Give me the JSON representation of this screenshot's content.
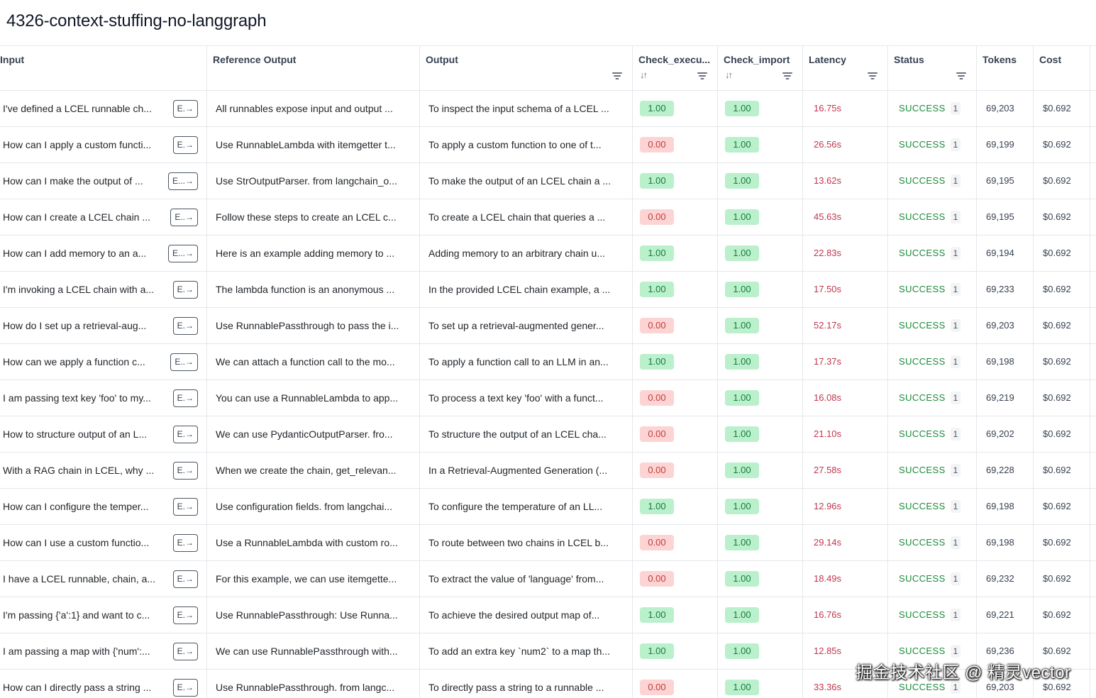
{
  "page_title": "4326-context-stuffing-no-langgraph",
  "columns": {
    "input": "Input",
    "reference": "Reference Output",
    "output": "Output",
    "check_exec": "Check_execu...",
    "check_import": "Check_import",
    "latency": "Latency",
    "status": "Status",
    "tokens": "Tokens",
    "cost": "Cost"
  },
  "rows": [
    {
      "input": "I've defined a LCEL runnable ch...",
      "expand": "E.→",
      "reference": "All runnables expose input and output ...",
      "output": "To inspect the input schema of a LCEL ...",
      "check_exec": "1.00",
      "check_import": "1.00",
      "latency": "16.75s",
      "status": "SUCCESS",
      "count": "1",
      "tokens": "69,203",
      "cost": "$0.692"
    },
    {
      "input": "How can I apply a custom functi...",
      "expand": "E.→",
      "reference": "Use RunnableLambda with itemgetter t...",
      "output": "To apply a custom function to one of t...",
      "check_exec": "0.00",
      "check_import": "1.00",
      "latency": "26.56s",
      "status": "SUCCESS",
      "count": "1",
      "tokens": "69,199",
      "cost": "$0.692"
    },
    {
      "input": "How can I make the output of ...",
      "expand": "E...→",
      "reference": "Use StrOutputParser. from langchain_o...",
      "output": "To make the output of an LCEL chain a ...",
      "check_exec": "1.00",
      "check_import": "1.00",
      "latency": "13.62s",
      "status": "SUCCESS",
      "count": "1",
      "tokens": "69,195",
      "cost": "$0.692"
    },
    {
      "input": "How can I create a LCEL chain ...",
      "expand": "E..→",
      "reference": "Follow these steps to create an LCEL c...",
      "output": "To create a LCEL chain that queries a ...",
      "check_exec": "0.00",
      "check_import": "1.00",
      "latency": "45.63s",
      "status": "SUCCESS",
      "count": "1",
      "tokens": "69,195",
      "cost": "$0.692"
    },
    {
      "input": "How can I add memory to an a...",
      "expand": "E...→",
      "reference": "Here is an example adding memory to ...",
      "output": "Adding memory to an arbitrary chain u...",
      "check_exec": "1.00",
      "check_import": "1.00",
      "latency": "22.83s",
      "status": "SUCCESS",
      "count": "1",
      "tokens": "69,194",
      "cost": "$0.692"
    },
    {
      "input": "I'm invoking a LCEL chain with a...",
      "expand": "E.→",
      "reference": "The lambda function is an anonymous ...",
      "output": "In the provided LCEL chain example, a ...",
      "check_exec": "1.00",
      "check_import": "1.00",
      "latency": "17.50s",
      "status": "SUCCESS",
      "count": "1",
      "tokens": "69,233",
      "cost": "$0.692"
    },
    {
      "input": "How do I set up a retrieval-aug...",
      "expand": "E.→",
      "reference": "Use RunnablePassthrough to pass the i...",
      "output": "To set up a retrieval-augmented gener...",
      "check_exec": "0.00",
      "check_import": "1.00",
      "latency": "52.17s",
      "status": "SUCCESS",
      "count": "1",
      "tokens": "69,203",
      "cost": "$0.692"
    },
    {
      "input": "How can we apply a function c...",
      "expand": "E..→",
      "reference": "We can attach a function call to the mo...",
      "output": "To apply a function call to an LLM in an...",
      "check_exec": "1.00",
      "check_import": "1.00",
      "latency": "17.37s",
      "status": "SUCCESS",
      "count": "1",
      "tokens": "69,198",
      "cost": "$0.692"
    },
    {
      "input": "I am passing text key 'foo' to my...",
      "expand": "E.→",
      "reference": "You can use a RunnableLambda to app...",
      "output": "To process a text key 'foo' with a funct...",
      "check_exec": "0.00",
      "check_import": "1.00",
      "latency": "16.08s",
      "status": "SUCCESS",
      "count": "1",
      "tokens": "69,219",
      "cost": "$0.692"
    },
    {
      "input": "How to structure output of an L...",
      "expand": "E.→",
      "reference": "We can use PydanticOutputParser. fro...",
      "output": "To structure the output of an LCEL cha...",
      "check_exec": "0.00",
      "check_import": "1.00",
      "latency": "21.10s",
      "status": "SUCCESS",
      "count": "1",
      "tokens": "69,202",
      "cost": "$0.692"
    },
    {
      "input": "With a RAG chain in LCEL, why ...",
      "expand": "E.→",
      "reference": "When we create the chain, get_relevan...",
      "output": "In a Retrieval-Augmented Generation (...",
      "check_exec": "0.00",
      "check_import": "1.00",
      "latency": "27.58s",
      "status": "SUCCESS",
      "count": "1",
      "tokens": "69,228",
      "cost": "$0.692"
    },
    {
      "input": "How can I configure the temper...",
      "expand": "E.→",
      "reference": "Use configuration fields. from langchai...",
      "output": "To configure the temperature of an LL...",
      "check_exec": "1.00",
      "check_import": "1.00",
      "latency": "12.96s",
      "status": "SUCCESS",
      "count": "1",
      "tokens": "69,198",
      "cost": "$0.692"
    },
    {
      "input": "How can I use a custom functio...",
      "expand": "E.→",
      "reference": "Use a RunnableLambda with custom ro...",
      "output": "To route between two chains in LCEL b...",
      "check_exec": "0.00",
      "check_import": "1.00",
      "latency": "29.14s",
      "status": "SUCCESS",
      "count": "1",
      "tokens": "69,198",
      "cost": "$0.692"
    },
    {
      "input": "I have a LCEL runnable, chain, a...",
      "expand": "E.→",
      "reference": "For this example, we can use itemgette...",
      "output": "To extract the value of 'language' from...",
      "check_exec": "0.00",
      "check_import": "1.00",
      "latency": "18.49s",
      "status": "SUCCESS",
      "count": "1",
      "tokens": "69,232",
      "cost": "$0.692"
    },
    {
      "input": "I'm passing {'a':1} and want to c...",
      "expand": "E.→",
      "reference": "Use RunnablePassthrough: Use Runna...",
      "output": "To achieve the desired output map of...",
      "check_exec": "1.00",
      "check_import": "1.00",
      "latency": "16.76s",
      "status": "SUCCESS",
      "count": "1",
      "tokens": "69,221",
      "cost": "$0.692"
    },
    {
      "input": "I am passing a map with {'num':...",
      "expand": "E.→",
      "reference": "We can use RunnablePassthrough with...",
      "output": "To add an extra key `num2` to a map th...",
      "check_exec": "1.00",
      "check_import": "1.00",
      "latency": "12.85s",
      "status": "SUCCESS",
      "count": "1",
      "tokens": "69,236",
      "cost": "$0.692"
    },
    {
      "input": "How can I directly pass a string ...",
      "expand": "E.→",
      "reference": "Use RunnablePassthrough. from langc...",
      "output": "To directly pass a string to a runnable ...",
      "check_exec": "0.00",
      "check_import": "1.00",
      "latency": "33.36s",
      "status": "SUCCESS",
      "count": "1",
      "tokens": "69,203",
      "cost": "$0.692"
    }
  ],
  "watermark": "掘金技术社区 @ 精灵vector"
}
